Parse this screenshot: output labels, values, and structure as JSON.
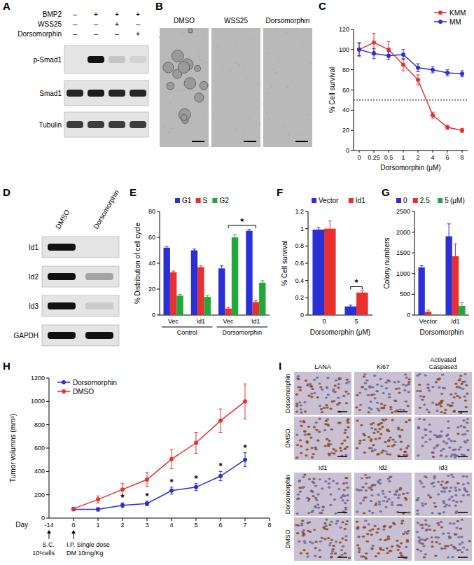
{
  "panel_labels": [
    "A",
    "B",
    "C",
    "D",
    "E",
    "F",
    "G",
    "H",
    "I"
  ],
  "blot_a": {
    "conditions": [
      {
        "label": "BMP2",
        "signs": [
          "–",
          "+",
          "+",
          "+"
        ]
      },
      {
        "label": "WSS25",
        "signs": [
          "–",
          "–",
          "+",
          "–"
        ]
      },
      {
        "label": "Dorsomorphin",
        "signs": [
          "–",
          "–",
          "–",
          "+"
        ]
      }
    ],
    "bands": [
      {
        "label": "p-Smad1",
        "intensity": [
          0,
          1,
          0.15,
          0.08
        ]
      },
      {
        "label": "Smad1",
        "intensity": [
          0.9,
          0.95,
          0.9,
          0.9
        ]
      },
      {
        "label": "Tubulin",
        "intensity": [
          0.8,
          0.8,
          0.8,
          0.8
        ]
      }
    ]
  },
  "images_b": {
    "labels": [
      "DMSO",
      "WSS25",
      "Dorsomorphin"
    ],
    "colonies_visible": [
      true,
      false,
      false
    ]
  },
  "blot_d": {
    "lanes": [
      "DMSO",
      "Dorsomorphin"
    ],
    "bands": [
      {
        "label": "Id1",
        "intensity": [
          1,
          0
        ]
      },
      {
        "label": "Id2",
        "intensity": [
          1,
          0.3
        ]
      },
      {
        "label": "Id3",
        "intensity": [
          1,
          0.12
        ]
      },
      {
        "label": "GAPDH",
        "intensity": [
          1,
          1
        ]
      }
    ]
  },
  "ihc_i": {
    "rows": [
      "Dorsomorphin",
      "DMSO"
    ],
    "blocks": [
      {
        "stains": [
          "LANA",
          "Ki67",
          "Activated Caspase3"
        ],
        "staining": [
          [
            0.6,
            0.3,
            0.5
          ],
          [
            0.8,
            0.85,
            0.05
          ]
        ]
      },
      {
        "stains": [
          "Id1",
          "Id2",
          "Id3"
        ],
        "staining": [
          [
            0.15,
            0.3,
            0.05
          ],
          [
            0.6,
            0.7,
            0.3
          ]
        ]
      }
    ]
  },
  "chart_data": [
    {
      "type": "line",
      "x_label": "Dorsomorphin (μM)",
      "y_label": "% Cell survival",
      "categories": [
        "0",
        "0.25",
        "0.5",
        "1",
        "2",
        "4",
        "6",
        "8"
      ],
      "series": [
        {
          "name": "KMM",
          "color": "#e8312f",
          "marker": "circle",
          "values": [
            100,
            107,
            100,
            85,
            70,
            35,
            23,
            20
          ],
          "errors": [
            7,
            9,
            8,
            6,
            5,
            3,
            2,
            2
          ]
        },
        {
          "name": "MM",
          "color": "#2b2fd6",
          "marker": "circle",
          "values": [
            100,
            96,
            94,
            95,
            82,
            80,
            77,
            76
          ],
          "errors": [
            6,
            5,
            4,
            5,
            4,
            3,
            3,
            3
          ]
        }
      ],
      "ylim": [
        0,
        120
      ],
      "yticks": [
        0,
        20,
        40,
        60,
        80,
        100,
        120
      ],
      "threshold": 50,
      "legend": "top-right"
    },
    {
      "type": "bar",
      "y_label": "% Distribution of cell cycle",
      "categories": [
        "Vec",
        "Id1",
        "Vec",
        "Id1"
      ],
      "group_labels": [
        "Control",
        "Dorsomorphin"
      ],
      "series": [
        {
          "name": "G1",
          "color": "#2b2fd6",
          "values": [
            52,
            50,
            36,
            65
          ],
          "errors": [
            1,
            1,
            2,
            1
          ]
        },
        {
          "name": "S",
          "color": "#e8312f",
          "values": [
            33,
            37,
            5,
            10
          ],
          "errors": [
            1,
            1,
            1,
            1
          ]
        },
        {
          "name": "G2",
          "color": "#22a83a",
          "values": [
            15,
            14,
            60,
            25
          ],
          "errors": [
            1,
            1,
            2,
            1.5
          ]
        }
      ],
      "ylim": [
        0,
        80
      ],
      "yticks": [
        0,
        20,
        40,
        60,
        80
      ],
      "legend": "top",
      "significance": {
        "label": "*",
        "between": [
          2,
          3
        ]
      }
    },
    {
      "type": "bar",
      "x_label": "Dorsomorphin (μM)",
      "y_label": "% Cell survival",
      "categories": [
        "0",
        "5"
      ],
      "series": [
        {
          "name": "Vector",
          "color": "#2b2fd6",
          "values": [
            0.99,
            0.1
          ],
          "errors": [
            0.02,
            0.015
          ]
        },
        {
          "name": "Id1",
          "color": "#e8312f",
          "values": [
            1.0,
            0.26
          ],
          "errors": [
            0.09,
            0.02
          ]
        }
      ],
      "ylim": [
        0,
        1.2
      ],
      "yticks": [
        0,
        0.2,
        0.4,
        0.6,
        0.8,
        1,
        1.2
      ],
      "legend": "top",
      "significance": {
        "label": "*",
        "category": 1
      }
    },
    {
      "type": "bar",
      "x_label": "Dorsomorphin",
      "y_label": "Colony numbers",
      "categories": [
        "Vector",
        "Id1"
      ],
      "legend_title": "(μM)",
      "series": [
        {
          "name": "0",
          "color": "#2b2fd6",
          "values": [
            1150,
            1900
          ],
          "errors": [
            40,
            300
          ]
        },
        {
          "name": "2.5",
          "color": "#e8312f",
          "values": [
            80,
            1420
          ],
          "errors": [
            40,
            300
          ]
        },
        {
          "name": "5",
          "color": "#22a83a",
          "values": [
            5,
            220
          ],
          "errors": [
            5,
            80
          ]
        }
      ],
      "ylim": [
        0,
        2500
      ],
      "yticks": [
        0,
        500,
        1000,
        1500,
        2000,
        2500
      ],
      "legend": "top"
    },
    {
      "type": "line",
      "x_label": "Day",
      "y_label": "Tumor volumns (mm³)",
      "x": [
        0,
        1,
        2,
        3,
        4,
        5,
        6,
        7
      ],
      "series": [
        {
          "name": "Dorsomorphin",
          "color": "#2b2fd6",
          "marker": "circle",
          "values": [
            75,
            75,
            110,
            125,
            235,
            265,
            360,
            500
          ],
          "errors": [
            10,
            15,
            20,
            20,
            30,
            30,
            40,
            60
          ],
          "significant": [
            false,
            false,
            true,
            true,
            true,
            true,
            true,
            true
          ]
        },
        {
          "name": "DMSO",
          "color": "#e8312f",
          "marker": "circle",
          "values": [
            80,
            160,
            245,
            330,
            505,
            645,
            835,
            1000
          ],
          "errors": [
            10,
            30,
            50,
            60,
            80,
            90,
            100,
            150
          ]
        }
      ],
      "significance_label": "*",
      "xlim": [
        -1,
        8
      ],
      "xticks": [
        0,
        1,
        2,
        3,
        4,
        5,
        6,
        7,
        8
      ],
      "ylim": [
        0,
        1200
      ],
      "yticks": [
        0,
        200,
        400,
        600,
        800,
        1000,
        1200
      ],
      "legend": "top-left",
      "annotations": [
        {
          "x": -14,
          "lines": [
            "S.C.",
            "10⁶cells"
          ]
        },
        {
          "x": 0,
          "lines": [
            "I.P. Single dose",
            "DM 10mg/Kg"
          ]
        }
      ]
    }
  ]
}
